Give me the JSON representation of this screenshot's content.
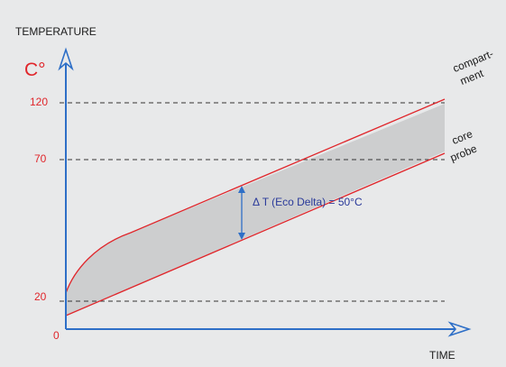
{
  "y_axis_title": "TEMPERATURE",
  "y_axis_unit": "C°",
  "x_axis_title": "TIME",
  "y_ticks": [
    {
      "label": "120",
      "value": 120
    },
    {
      "label": "70",
      "value": 70
    },
    {
      "label": "20",
      "value": 20
    },
    {
      "label": "0",
      "value": 0
    }
  ],
  "curve_labels": {
    "compartment_line1": "compart-",
    "compartment_line2": "ment",
    "core_line1": "core",
    "core_line2": "probe"
  },
  "delta_annotation": "Δ T (Eco Delta) = 50°C",
  "colors": {
    "background": "#e8e9ea",
    "axis": "#2e6fc7",
    "curve": "#e0262b",
    "band_fill": "#cdcecf",
    "tick_label": "#e0262b",
    "annotation": "#2a3a9a",
    "dashed": "#333333",
    "text": "#1a1a1a"
  }
}
